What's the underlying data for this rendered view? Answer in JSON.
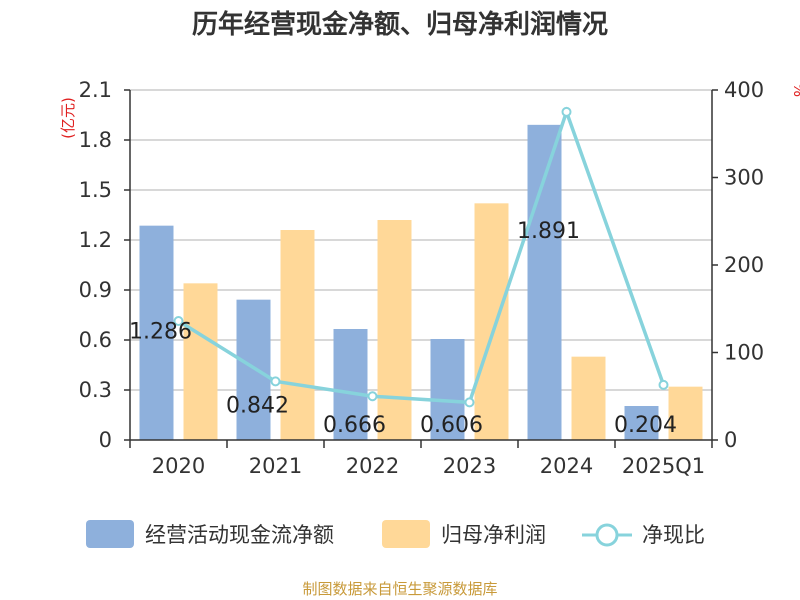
{
  "colors": {
    "bar1": "#8eb0dc",
    "bar2": "#ffd898",
    "line": "#87d3dc",
    "axis": "#333333",
    "grid": "#cccccc",
    "unit": "#e02020",
    "source": "#c89a3a"
  },
  "source": "制图数据来自恒生聚源数据库",
  "chart_data": {
    "type": "bar",
    "title": "历年经营现金净额、归母净利润情况",
    "categories": [
      "2020",
      "2021",
      "2022",
      "2023",
      "2024",
      "2025Q1"
    ],
    "series": [
      {
        "name": "经营活动现金流净额",
        "type": "bar",
        "axis": "left",
        "values": [
          1.286,
          0.842,
          0.666,
          0.606,
          1.891,
          0.204
        ],
        "labels": [
          "1.286",
          "0.842",
          "0.666",
          "0.606",
          "1.891",
          "0.204"
        ]
      },
      {
        "name": "归母净利润",
        "type": "bar",
        "axis": "left",
        "values": [
          0.94,
          1.26,
          1.32,
          1.42,
          0.5,
          0.32
        ]
      },
      {
        "name": "净现比",
        "type": "line",
        "axis": "right",
        "values": [
          136,
          67,
          50,
          43,
          375,
          63
        ]
      }
    ],
    "y_left": {
      "unit": "(亿元)",
      "min": 0,
      "max": 2.1,
      "ticks": [
        "0",
        "0.3",
        "0.6",
        "0.9",
        "1.2",
        "1.5",
        "1.8",
        "2.1"
      ]
    },
    "y_right": {
      "unit": "%",
      "min": 0,
      "max": 400,
      "ticks": [
        "0",
        "100",
        "200",
        "300",
        "400"
      ]
    },
    "grid": true,
    "legend_position": "bottom"
  }
}
